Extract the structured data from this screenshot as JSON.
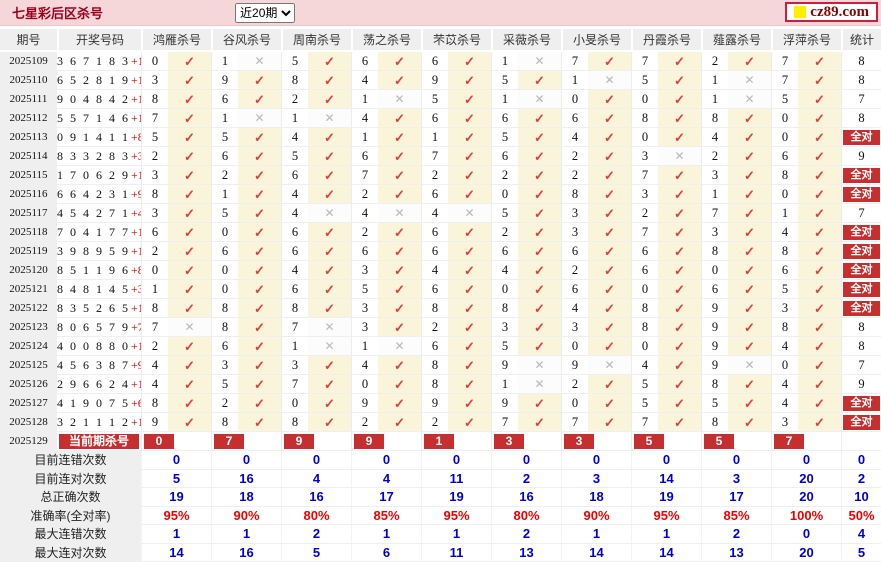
{
  "title_bar": {
    "title": "七星彩后区杀号",
    "range_select": {
      "value": "近20期",
      "options": [
        "近20期"
      ]
    },
    "logo_text": "cz89.com"
  },
  "table": {
    "headers": {
      "period": "期号",
      "draw": "开奖号码",
      "kills": [
        "鸿雁杀号",
        "谷风杀号",
        "周南杀号",
        "荡之杀号",
        "芣苡杀号",
        "采薇杀号",
        "小旻杀号",
        "丹霞杀号",
        "薤露杀号",
        "浮萍杀号"
      ],
      "stat": "统计"
    },
    "marks": {
      "check": "✓",
      "cross": "✕"
    },
    "all_correct_label": "全对",
    "rows": [
      {
        "period": "2025109",
        "draw": "367183",
        "bonus": "+13",
        "kills": [
          [
            "0",
            1
          ],
          [
            "1",
            0
          ],
          [
            "5",
            1
          ],
          [
            "6",
            1
          ],
          [
            "6",
            1
          ],
          [
            "1",
            0
          ],
          [
            "7",
            1
          ],
          [
            "7",
            1
          ],
          [
            "2",
            1
          ],
          [
            "7",
            1
          ]
        ],
        "stat": "8"
      },
      {
        "period": "2025110",
        "draw": "652819",
        "bonus": "+12",
        "kills": [
          [
            "3",
            1
          ],
          [
            "9",
            1
          ],
          [
            "8",
            1
          ],
          [
            "4",
            1
          ],
          [
            "9",
            1
          ],
          [
            "5",
            1
          ],
          [
            "1",
            0
          ],
          [
            "5",
            1
          ],
          [
            "1",
            0
          ],
          [
            "7",
            1
          ]
        ],
        "stat": "8"
      },
      {
        "period": "2025111",
        "draw": "904842",
        "bonus": "+11",
        "kills": [
          [
            "8",
            1
          ],
          [
            "6",
            1
          ],
          [
            "2",
            1
          ],
          [
            "1",
            0
          ],
          [
            "5",
            1
          ],
          [
            "1",
            0
          ],
          [
            "0",
            1
          ],
          [
            "0",
            1
          ],
          [
            "1",
            0
          ],
          [
            "5",
            1
          ]
        ],
        "stat": "7"
      },
      {
        "period": "2025112",
        "draw": "557146",
        "bonus": "+10",
        "kills": [
          [
            "7",
            1
          ],
          [
            "1",
            0
          ],
          [
            "1",
            0
          ],
          [
            "4",
            1
          ],
          [
            "6",
            1
          ],
          [
            "6",
            1
          ],
          [
            "6",
            1
          ],
          [
            "8",
            1
          ],
          [
            "8",
            1
          ],
          [
            "0",
            1
          ]
        ],
        "stat": "8"
      },
      {
        "period": "2025113",
        "draw": "091411",
        "bonus": "+8",
        "kills": [
          [
            "5",
            1
          ],
          [
            "5",
            1
          ],
          [
            "4",
            1
          ],
          [
            "1",
            1
          ],
          [
            "1",
            1
          ],
          [
            "5",
            1
          ],
          [
            "4",
            1
          ],
          [
            "0",
            1
          ],
          [
            "4",
            1
          ],
          [
            "0",
            1
          ]
        ],
        "stat": "全对"
      },
      {
        "period": "2025114",
        "draw": "833283",
        "bonus": "+3",
        "kills": [
          [
            "2",
            1
          ],
          [
            "6",
            1
          ],
          [
            "5",
            1
          ],
          [
            "6",
            1
          ],
          [
            "7",
            1
          ],
          [
            "6",
            1
          ],
          [
            "2",
            1
          ],
          [
            "3",
            0
          ],
          [
            "2",
            1
          ],
          [
            "6",
            1
          ]
        ],
        "stat": "9"
      },
      {
        "period": "2025115",
        "draw": "170629",
        "bonus": "+12",
        "kills": [
          [
            "3",
            1
          ],
          [
            "2",
            1
          ],
          [
            "6",
            1
          ],
          [
            "7",
            1
          ],
          [
            "2",
            1
          ],
          [
            "2",
            1
          ],
          [
            "2",
            1
          ],
          [
            "7",
            1
          ],
          [
            "3",
            1
          ],
          [
            "8",
            1
          ]
        ],
        "stat": "全对"
      },
      {
        "period": "2025116",
        "draw": "664231",
        "bonus": "+9",
        "kills": [
          [
            "8",
            1
          ],
          [
            "1",
            1
          ],
          [
            "4",
            1
          ],
          [
            "2",
            1
          ],
          [
            "6",
            1
          ],
          [
            "0",
            1
          ],
          [
            "8",
            1
          ],
          [
            "3",
            1
          ],
          [
            "1",
            1
          ],
          [
            "0",
            1
          ]
        ],
        "stat": "全对"
      },
      {
        "period": "2025117",
        "draw": "454271",
        "bonus": "+4",
        "kills": [
          [
            "3",
            1
          ],
          [
            "5",
            1
          ],
          [
            "4",
            0
          ],
          [
            "4",
            0
          ],
          [
            "4",
            0
          ],
          [
            "5",
            1
          ],
          [
            "3",
            1
          ],
          [
            "2",
            1
          ],
          [
            "7",
            1
          ],
          [
            "1",
            1
          ]
        ],
        "stat": "7"
      },
      {
        "period": "2025118",
        "draw": "704177",
        "bonus": "+11",
        "kills": [
          [
            "6",
            1
          ],
          [
            "0",
            1
          ],
          [
            "6",
            1
          ],
          [
            "2",
            1
          ],
          [
            "6",
            1
          ],
          [
            "2",
            1
          ],
          [
            "3",
            1
          ],
          [
            "7",
            1
          ],
          [
            "3",
            1
          ],
          [
            "4",
            1
          ]
        ],
        "stat": "全对"
      },
      {
        "period": "2025119",
        "draw": "398959",
        "bonus": "+10",
        "kills": [
          [
            "2",
            1
          ],
          [
            "6",
            1
          ],
          [
            "6",
            1
          ],
          [
            "6",
            1
          ],
          [
            "6",
            1
          ],
          [
            "6",
            1
          ],
          [
            "6",
            1
          ],
          [
            "6",
            1
          ],
          [
            "8",
            1
          ],
          [
            "8",
            1
          ]
        ],
        "stat": "全对"
      },
      {
        "period": "2025120",
        "draw": "851196",
        "bonus": "+8",
        "kills": [
          [
            "0",
            1
          ],
          [
            "0",
            1
          ],
          [
            "4",
            1
          ],
          [
            "3",
            1
          ],
          [
            "4",
            1
          ],
          [
            "4",
            1
          ],
          [
            "2",
            1
          ],
          [
            "6",
            1
          ],
          [
            "0",
            1
          ],
          [
            "6",
            1
          ]
        ],
        "stat": "全对"
      },
      {
        "period": "2025121",
        "draw": "848145",
        "bonus": "+3",
        "kills": [
          [
            "1",
            1
          ],
          [
            "0",
            1
          ],
          [
            "6",
            1
          ],
          [
            "5",
            1
          ],
          [
            "6",
            1
          ],
          [
            "0",
            1
          ],
          [
            "6",
            1
          ],
          [
            "0",
            1
          ],
          [
            "6",
            1
          ],
          [
            "5",
            1
          ]
        ],
        "stat": "全对"
      },
      {
        "period": "2025122",
        "draw": "835265",
        "bonus": "+10",
        "kills": [
          [
            "8",
            1
          ],
          [
            "8",
            1
          ],
          [
            "8",
            1
          ],
          [
            "3",
            1
          ],
          [
            "8",
            1
          ],
          [
            "8",
            1
          ],
          [
            "4",
            1
          ],
          [
            "8",
            1
          ],
          [
            "9",
            1
          ],
          [
            "3",
            1
          ]
        ],
        "stat": "全对"
      },
      {
        "period": "2025123",
        "draw": "806579",
        "bonus": "+7",
        "kills": [
          [
            "7",
            0
          ],
          [
            "8",
            1
          ],
          [
            "7",
            0
          ],
          [
            "3",
            1
          ],
          [
            "2",
            1
          ],
          [
            "3",
            1
          ],
          [
            "3",
            1
          ],
          [
            "8",
            1
          ],
          [
            "9",
            1
          ],
          [
            "8",
            1
          ]
        ],
        "stat": "8"
      },
      {
        "period": "2025124",
        "draw": "400880",
        "bonus": "+10",
        "kills": [
          [
            "2",
            1
          ],
          [
            "6",
            1
          ],
          [
            "1",
            0
          ],
          [
            "1",
            0
          ],
          [
            "6",
            1
          ],
          [
            "5",
            1
          ],
          [
            "0",
            1
          ],
          [
            "0",
            1
          ],
          [
            "9",
            1
          ],
          [
            "4",
            1
          ]
        ],
        "stat": "8"
      },
      {
        "period": "2025125",
        "draw": "456387",
        "bonus": "+9",
        "kills": [
          [
            "4",
            1
          ],
          [
            "3",
            1
          ],
          [
            "3",
            1
          ],
          [
            "4",
            1
          ],
          [
            "8",
            1
          ],
          [
            "9",
            0
          ],
          [
            "9",
            0
          ],
          [
            "4",
            1
          ],
          [
            "9",
            0
          ],
          [
            "0",
            1
          ]
        ],
        "stat": "7"
      },
      {
        "period": "2025126",
        "draw": "296624",
        "bonus": "+12",
        "kills": [
          [
            "4",
            1
          ],
          [
            "5",
            1
          ],
          [
            "7",
            1
          ],
          [
            "0",
            1
          ],
          [
            "8",
            1
          ],
          [
            "1",
            0
          ],
          [
            "2",
            1
          ],
          [
            "5",
            1
          ],
          [
            "8",
            1
          ],
          [
            "4",
            1
          ]
        ],
        "stat": "9"
      },
      {
        "period": "2025127",
        "draw": "419075",
        "bonus": "+6",
        "kills": [
          [
            "8",
            1
          ],
          [
            "2",
            1
          ],
          [
            "0",
            1
          ],
          [
            "9",
            1
          ],
          [
            "9",
            1
          ],
          [
            "9",
            1
          ],
          [
            "0",
            1
          ],
          [
            "5",
            1
          ],
          [
            "5",
            1
          ],
          [
            "4",
            1
          ]
        ],
        "stat": "全对"
      },
      {
        "period": "2025128",
        "draw": "321112",
        "bonus": "+12",
        "kills": [
          [
            "9",
            1
          ],
          [
            "8",
            1
          ],
          [
            "8",
            1
          ],
          [
            "2",
            1
          ],
          [
            "2",
            1
          ],
          [
            "7",
            1
          ],
          [
            "7",
            1
          ],
          [
            "7",
            1
          ],
          [
            "8",
            1
          ],
          [
            "3",
            1
          ]
        ],
        "stat": "全对"
      }
    ],
    "current_row": {
      "period": "2025129",
      "label": "当前期杀号",
      "kills": [
        "0",
        "7",
        "9",
        "9",
        "1",
        "3",
        "3",
        "5",
        "5",
        "7"
      ],
      "stat": ""
    },
    "summary_rows": [
      {
        "label": "目前连错次数",
        "style": "blue",
        "values": [
          "0",
          "0",
          "0",
          "0",
          "0",
          "0",
          "0",
          "0",
          "0",
          "0"
        ],
        "stat": "0"
      },
      {
        "label": "目前连对次数",
        "style": "blue",
        "values": [
          "5",
          "16",
          "4",
          "4",
          "11",
          "2",
          "3",
          "14",
          "3",
          "20"
        ],
        "stat": "2"
      },
      {
        "label": "总正确次数",
        "style": "blue",
        "values": [
          "19",
          "18",
          "16",
          "17",
          "19",
          "16",
          "18",
          "19",
          "17",
          "20"
        ],
        "stat": "10"
      },
      {
        "label": "准确率(全对率)",
        "style": "red",
        "values": [
          "95%",
          "90%",
          "80%",
          "85%",
          "95%",
          "80%",
          "90%",
          "95%",
          "85%",
          "100%"
        ],
        "stat": "50%"
      },
      {
        "label": "最大连错次数",
        "style": "blue",
        "values": [
          "1",
          "1",
          "2",
          "1",
          "1",
          "2",
          "1",
          "1",
          "2",
          "0"
        ],
        "stat": "4"
      },
      {
        "label": "最大连对次数",
        "style": "blue",
        "values": [
          "14",
          "16",
          "5",
          "6",
          "11",
          "13",
          "14",
          "14",
          "13",
          "20"
        ],
        "stat": "5"
      }
    ]
  },
  "colors": {
    "title_bar_bg": "#f5d6d9",
    "title_text": "#9b001d",
    "badge_red": "#c62f2f",
    "check_red": "#dc4040",
    "cross_gray": "#b9b9b9",
    "check_cell_bg": "#faf4da",
    "summary_blue": "#0000d6",
    "summary_red": "#ee0000",
    "header_bg": "#efefef",
    "logo_yellow": "#ffee00",
    "bonus_red": "#e00000"
  }
}
